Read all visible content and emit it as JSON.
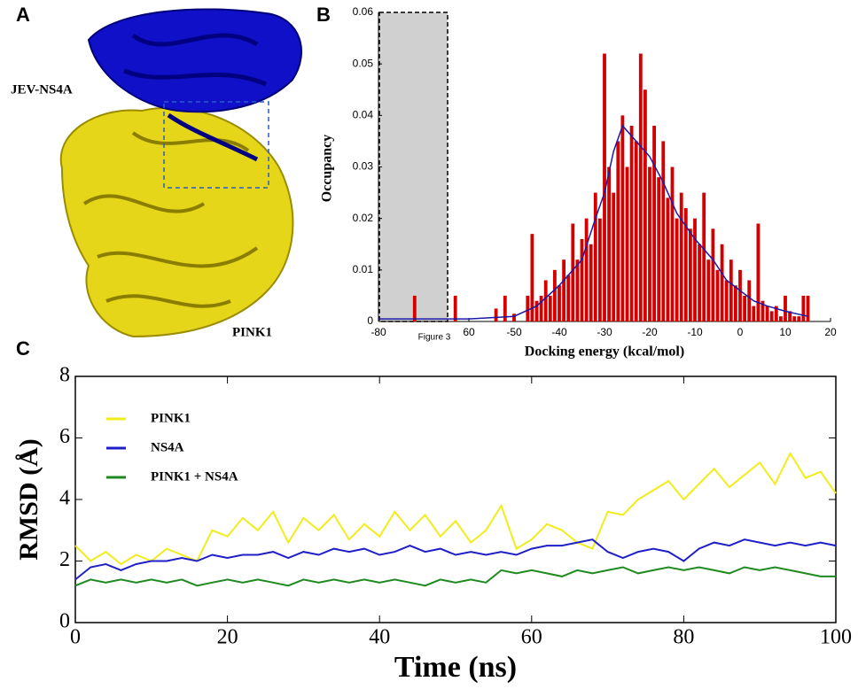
{
  "figure": {
    "panel_labels": [
      "A",
      "B",
      "C"
    ],
    "panel_a_labels": [
      "JEV-NS4A",
      "PINK1"
    ]
  },
  "chart_data": [
    {
      "type": "bar",
      "xlabel": "Docking energy (kcal/mol)",
      "ylabel": "Occupancy",
      "annotation": "Figure 3",
      "xlim": [
        -80,
        20
      ],
      "ylim": [
        0,
        0.06
      ],
      "xticks": [
        -80,
        {
          "value": -60,
          "label": "60"
        },
        -50,
        -40,
        -30,
        -20,
        -10,
        0,
        10,
        20
      ],
      "yticks": [
        0,
        0.01,
        0.02,
        0.03,
        0.04,
        0.05,
        0.06
      ],
      "bars": {
        "color": "#d40000",
        "x": [
          -72,
          -63,
          -54,
          -52,
          -50,
          -47,
          -46,
          -45,
          -44,
          -43,
          -42,
          -41,
          -40,
          -39,
          -38,
          -37,
          -36,
          -35,
          -34,
          -33,
          -32,
          -31,
          -30,
          -29,
          -28,
          -27,
          -26,
          -25,
          -24,
          -23,
          -22,
          -21,
          -20,
          -19,
          -18,
          -17,
          -16,
          -15,
          -14,
          -13,
          -12,
          -11,
          -10,
          -9,
          -8,
          -7,
          -6,
          -5,
          -4,
          -3,
          -2,
          -1,
          0,
          1,
          2,
          3,
          4,
          5,
          6,
          7,
          8,
          9,
          10,
          11,
          12,
          13,
          14,
          15
        ],
        "values": [
          0.005,
          0.005,
          0.0025,
          0.005,
          0.0015,
          0.005,
          0.017,
          0.004,
          0.005,
          0.008,
          0.005,
          0.01,
          0.007,
          0.012,
          0.009,
          0.019,
          0.012,
          0.016,
          0.02,
          0.015,
          0.025,
          0.02,
          0.052,
          0.03,
          0.025,
          0.035,
          0.04,
          0.03,
          0.038,
          0.035,
          0.052,
          0.045,
          0.03,
          0.038,
          0.028,
          0.035,
          0.024,
          0.03,
          0.02,
          0.025,
          0.022,
          0.018,
          0.02,
          0.015,
          0.025,
          0.012,
          0.018,
          0.01,
          0.015,
          0.008,
          0.012,
          0.007,
          0.01,
          0.005,
          0.008,
          0.003,
          0.019,
          0.004,
          0.003,
          0.002,
          0.003,
          0.001,
          0.005,
          0.002,
          0.001,
          0.001,
          0.005,
          0.005
        ]
      },
      "line": {
        "color": "#1a1aa6",
        "x": [
          -80,
          -70,
          -60,
          -50,
          -45,
          -40,
          -35,
          -32,
          -30,
          -28,
          -26,
          -24,
          -22,
          -20,
          -17,
          -14,
          -10,
          -6,
          -3,
          0,
          3,
          6,
          10,
          15
        ],
        "values": [
          0.0005,
          0.0005,
          0.0005,
          0.001,
          0.003,
          0.007,
          0.012,
          0.02,
          0.025,
          0.033,
          0.038,
          0.036,
          0.034,
          0.032,
          0.027,
          0.021,
          0.016,
          0.012,
          0.008,
          0.006,
          0.004,
          0.003,
          0.002,
          0.001
        ]
      }
    },
    {
      "type": "line",
      "xlabel": "Time (ns)",
      "ylabel": "RMSD (Å)",
      "xlim": [
        0,
        100
      ],
      "ylim": [
        0,
        8
      ],
      "xticks": [
        0,
        20,
        40,
        60,
        80,
        100
      ],
      "yticks": [
        0,
        2,
        4,
        6,
        8
      ],
      "legend": "upper left",
      "x": [
        0,
        2,
        4,
        6,
        8,
        10,
        12,
        14,
        16,
        18,
        20,
        22,
        24,
        26,
        28,
        30,
        32,
        34,
        36,
        38,
        40,
        42,
        44,
        46,
        48,
        50,
        52,
        54,
        56,
        58,
        60,
        62,
        64,
        66,
        68,
        70,
        72,
        74,
        76,
        78,
        80,
        82,
        84,
        86,
        88,
        90,
        92,
        94,
        96,
        98,
        100
      ],
      "series": [
        {
          "name": "PINK1",
          "color": "#f2ec1c",
          "values": [
            2.5,
            2.0,
            2.3,
            1.9,
            2.2,
            2.0,
            2.4,
            2.2,
            2.0,
            3.0,
            2.8,
            3.4,
            3.0,
            3.6,
            2.6,
            3.4,
            3.0,
            3.5,
            2.7,
            3.2,
            2.8,
            3.6,
            3.0,
            3.5,
            2.8,
            3.3,
            2.6,
            3.0,
            3.8,
            2.4,
            2.7,
            3.2,
            3.0,
            2.6,
            2.4,
            3.6,
            3.5,
            4.0,
            4.3,
            4.6,
            4.0,
            4.5,
            5.0,
            4.4,
            4.8,
            5.2,
            4.5,
            5.5,
            4.7,
            4.9,
            4.2
          ]
        },
        {
          "name": "NS4A",
          "color": "#1f1fc8",
          "values": [
            1.4,
            1.8,
            1.9,
            1.7,
            1.9,
            2.0,
            2.0,
            2.1,
            2.0,
            2.2,
            2.1,
            2.2,
            2.2,
            2.3,
            2.1,
            2.3,
            2.2,
            2.4,
            2.3,
            2.4,
            2.2,
            2.3,
            2.5,
            2.3,
            2.4,
            2.2,
            2.3,
            2.2,
            2.3,
            2.2,
            2.4,
            2.5,
            2.5,
            2.6,
            2.7,
            2.3,
            2.1,
            2.3,
            2.4,
            2.3,
            2.0,
            2.4,
            2.6,
            2.5,
            2.7,
            2.6,
            2.5,
            2.6,
            2.5,
            2.6,
            2.5
          ]
        },
        {
          "name": "PINK1 + NS4A",
          "color": "#1f8a1f",
          "values": [
            1.2,
            1.4,
            1.3,
            1.4,
            1.3,
            1.4,
            1.3,
            1.4,
            1.2,
            1.3,
            1.4,
            1.3,
            1.4,
            1.3,
            1.2,
            1.4,
            1.3,
            1.4,
            1.3,
            1.4,
            1.3,
            1.4,
            1.3,
            1.2,
            1.4,
            1.3,
            1.4,
            1.3,
            1.7,
            1.6,
            1.7,
            1.6,
            1.5,
            1.7,
            1.6,
            1.7,
            1.8,
            1.6,
            1.7,
            1.8,
            1.7,
            1.8,
            1.7,
            1.6,
            1.8,
            1.7,
            1.8,
            1.7,
            1.6,
            1.5,
            1.5
          ]
        }
      ]
    }
  ]
}
